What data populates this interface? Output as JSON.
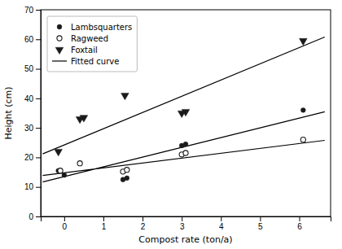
{
  "chart_data": {
    "type": "scatter",
    "xlabel": "Compost rate (ton/a)",
    "ylabel": "Height (cm)",
    "xlim": [
      -0.6,
      6.8
    ],
    "ylim": [
      0,
      70
    ],
    "xticks": [
      0,
      1,
      2,
      3,
      4,
      5,
      6
    ],
    "yticks": [
      0,
      10,
      20,
      30,
      40,
      50,
      60,
      70
    ],
    "grid": false,
    "legend": "upper-left",
    "series": [
      {
        "name": "Lambsquarters",
        "type": "scatter",
        "marker": "circle",
        "color": "#1a1a1a",
        "x": [
          -0.15,
          0.0,
          1.5,
          1.6,
          3.0,
          3.1,
          6.1
        ],
        "values": [
          15.5,
          14.0,
          12.5,
          13.0,
          24.0,
          24.5,
          36.0
        ]
      },
      {
        "name": "Ragweed",
        "type": "scatter",
        "marker": "open-circle",
        "color": "#1a1a1a",
        "x": [
          -0.1,
          0.4,
          1.5,
          1.6,
          3.0,
          3.1,
          6.1
        ],
        "values": [
          15.5,
          18.0,
          15.2,
          15.8,
          21.0,
          21.5,
          26.0
        ]
      },
      {
        "name": "Foxtail",
        "type": "scatter",
        "marker": "triangle-down",
        "color": "#1a1a1a",
        "x": [
          -0.15,
          0.4,
          0.5,
          1.55,
          3.0,
          3.1,
          6.1
        ],
        "values": [
          22.0,
          33.0,
          33.5,
          41.0,
          35.0,
          35.5,
          59.5
        ]
      },
      {
        "name": "Fitted curve",
        "type": "line",
        "line_style": "solid",
        "color": "#000000",
        "x": [
          -0.55,
          6.65,
          null,
          -0.55,
          6.65,
          null,
          -0.55,
          6.65
        ],
        "values": [
          11.685,
          35.445,
          null,
          13.8925,
          25.7725,
          null,
          21.175,
          60.775
        ]
      }
    ]
  }
}
